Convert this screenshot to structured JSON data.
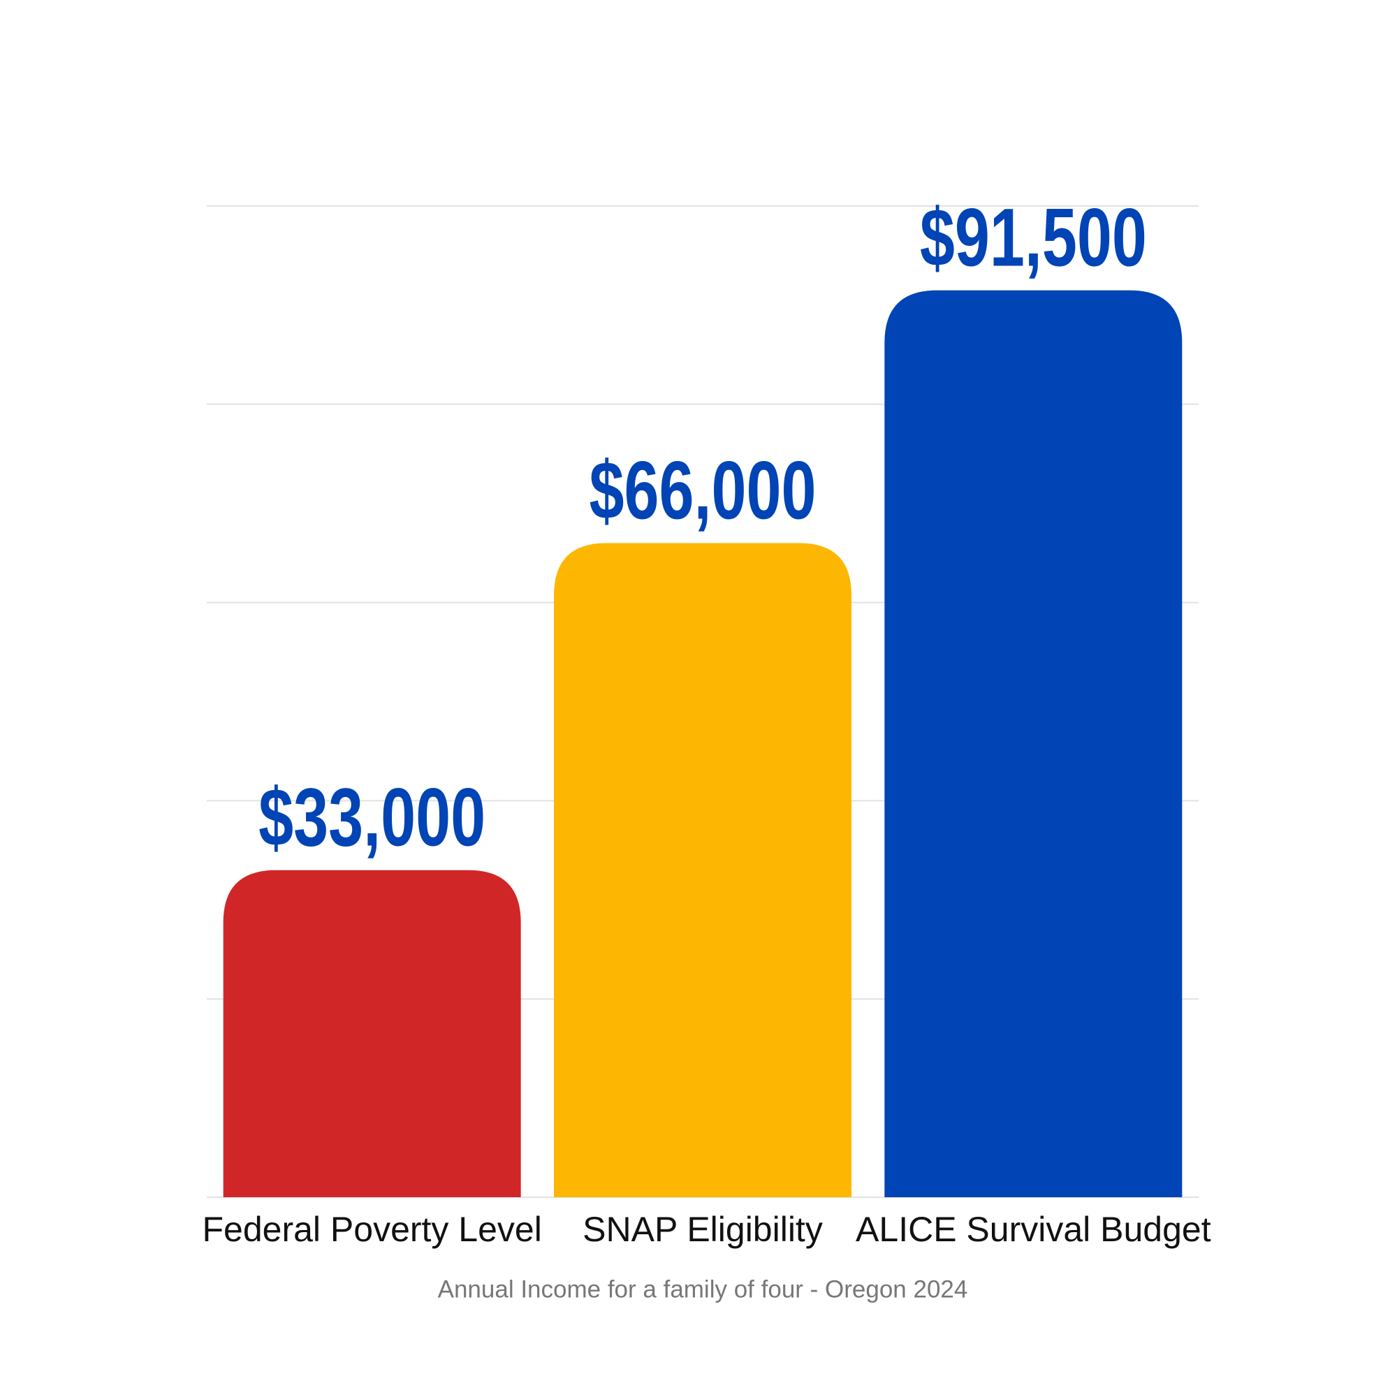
{
  "chart_data": {
    "type": "bar",
    "subtitle": "Annual Income for a family of four - Oregon 2024",
    "categories": [
      "Federal Poverty Level",
      "SNAP Eligibility",
      "ALICE Survival Budget"
    ],
    "values": [
      33000,
      66000,
      91500
    ],
    "value_labels": [
      "$33,000",
      "$66,000",
      "$91,500"
    ],
    "colors": [
      "#d12628",
      "#fdb702",
      "#0044b5"
    ],
    "label_color": "#0044b5",
    "ylim": [
      0,
      100000
    ],
    "yticks": [
      0,
      20000,
      40000,
      60000,
      80000,
      100000
    ],
    "grid": true
  }
}
